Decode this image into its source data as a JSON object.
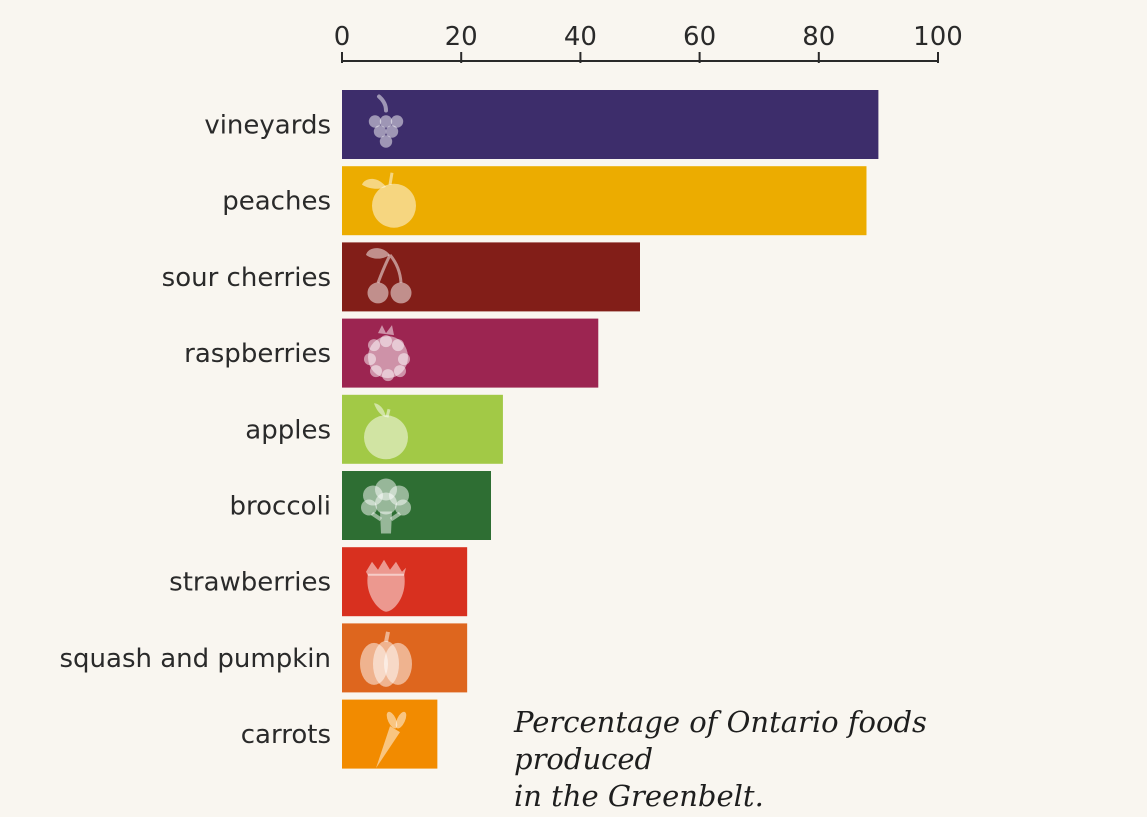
{
  "chart_data": {
    "type": "bar",
    "orientation": "horizontal",
    "title": "Percentage of Ontario foods produced in the Greenbelt.",
    "xlim": [
      0,
      100
    ],
    "xticks": [
      0,
      20,
      40,
      60,
      80,
      100
    ],
    "xaxis_position": "top",
    "grid": false,
    "categories": [
      "vineyards",
      "peaches",
      "sour cherries",
      "raspberries",
      "apples",
      "broccoli",
      "strawberries",
      "squash and pumpkin",
      "carrots"
    ],
    "values": [
      90,
      88,
      50,
      43,
      27,
      25,
      21,
      21,
      16
    ],
    "colors": [
      "#3d2d6b",
      "#ecac00",
      "#821e18",
      "#9c2551",
      "#a2c946",
      "#2e6e33",
      "#d8301f",
      "#de661e",
      "#f28b00"
    ],
    "icons": [
      "grapes-icon",
      "peach-icon",
      "cherries-icon",
      "raspberry-icon",
      "apple-icon",
      "broccoli-icon",
      "strawberry-icon",
      "pumpkin-icon",
      "carrot-icon"
    ]
  },
  "caption": {
    "line1": "Percentage of Ontario foods produced",
    "line2": "in the Greenbelt."
  }
}
